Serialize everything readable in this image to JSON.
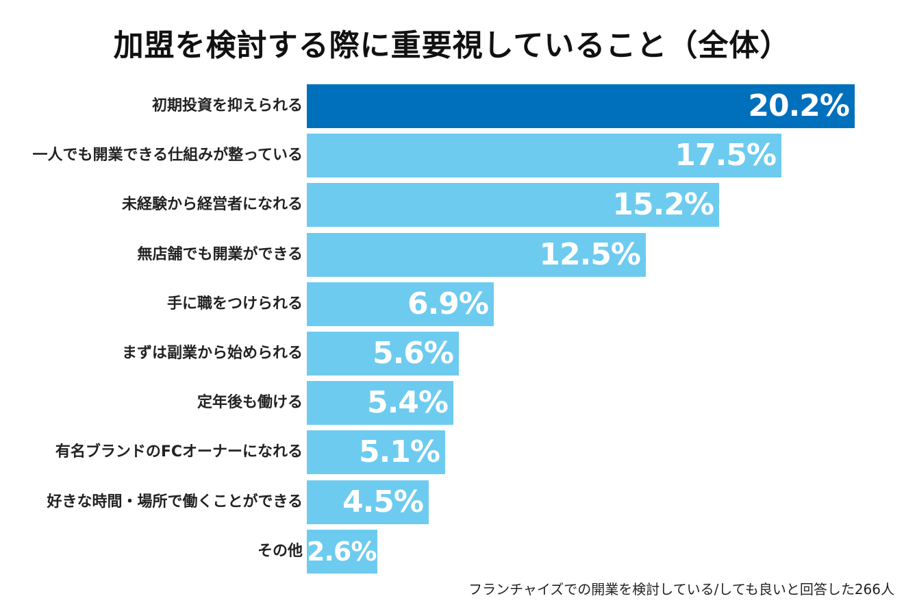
{
  "chart_data": {
    "type": "bar",
    "orientation": "horizontal",
    "title": "加盟を検討する際に重要視していること（全体）",
    "categories": [
      "初期投資を抑えられる",
      "一人でも開業できる仕組みが整っている",
      "未経験から経営者になれる",
      "無店舗でも開業ができる",
      "手に職をつけられる",
      "まずは副業から始められる",
      "定年後も働ける",
      "有名ブランドのFCオーナーになれる",
      "好きな時間・場所で働くことができる",
      "その他"
    ],
    "values": [
      20.2,
      17.5,
      15.2,
      12.5,
      6.9,
      5.6,
      5.4,
      5.1,
      4.5,
      2.6
    ],
    "value_labels": [
      "20.2%",
      "17.5%",
      "15.2%",
      "12.5%",
      "6.9%",
      "5.6%",
      "5.4%",
      "5.1%",
      "4.5%",
      "2.6%"
    ],
    "unit": "%",
    "xlim": [
      0,
      20.2
    ],
    "xlabel": "",
    "ylabel": "",
    "grid": false,
    "legend": "none",
    "highlight_color": "#0070BC",
    "bar_color": "#6DCBEF",
    "note": "フランチャイズでの開業を検討している/しても良いと回答した266人"
  }
}
